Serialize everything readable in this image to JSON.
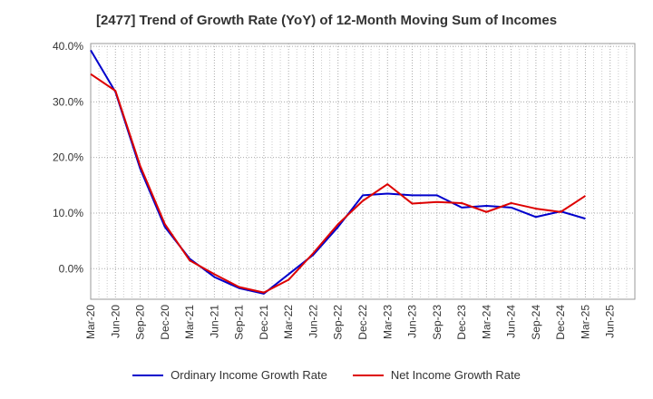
{
  "chart_data": {
    "type": "line",
    "title": "[2477]  Trend of Growth Rate (YoY) of 12-Month Moving Sum of Incomes",
    "y_tick_labels": [
      "40.0%",
      "30.0%",
      "20.0%",
      "10.0%",
      "0.0%"
    ],
    "y_ticks": [
      40,
      30,
      20,
      10,
      0
    ],
    "ylim": [
      -5.5,
      40.5
    ],
    "x_tick_labels": [
      "Mar-20",
      "Jun-20",
      "Sep-20",
      "Dec-20",
      "Mar-21",
      "Jun-21",
      "Sep-21",
      "Dec-21",
      "Mar-22",
      "Jun-22",
      "Sep-22",
      "Dec-22",
      "Mar-23",
      "Jun-23",
      "Sep-23",
      "Dec-23",
      "Mar-24",
      "Jun-24",
      "Sep-24",
      "Dec-24",
      "Mar-25",
      "Jun-25"
    ],
    "grid": true,
    "legend_position": "bottom",
    "series": [
      {
        "name": "Ordinary Income Growth Rate",
        "color": "#0000cc",
        "values": [
          39.3,
          31.8,
          18.0,
          7.5,
          1.8,
          -1.5,
          -3.5,
          -4.5,
          -1.0,
          2.5,
          7.5,
          13.2,
          13.5,
          13.2,
          13.2,
          11.0,
          11.3,
          11.0,
          9.3,
          10.3,
          9.0
        ]
      },
      {
        "name": "Net Income Growth Rate",
        "color": "#dd0000",
        "values": [
          35.0,
          32.0,
          18.5,
          8.0,
          1.5,
          -1.0,
          -3.3,
          -4.3,
          -2.0,
          2.8,
          8.0,
          12.2,
          15.2,
          11.7,
          12.0,
          11.8,
          10.2,
          11.8,
          10.8,
          10.2,
          13.1
        ]
      }
    ]
  }
}
